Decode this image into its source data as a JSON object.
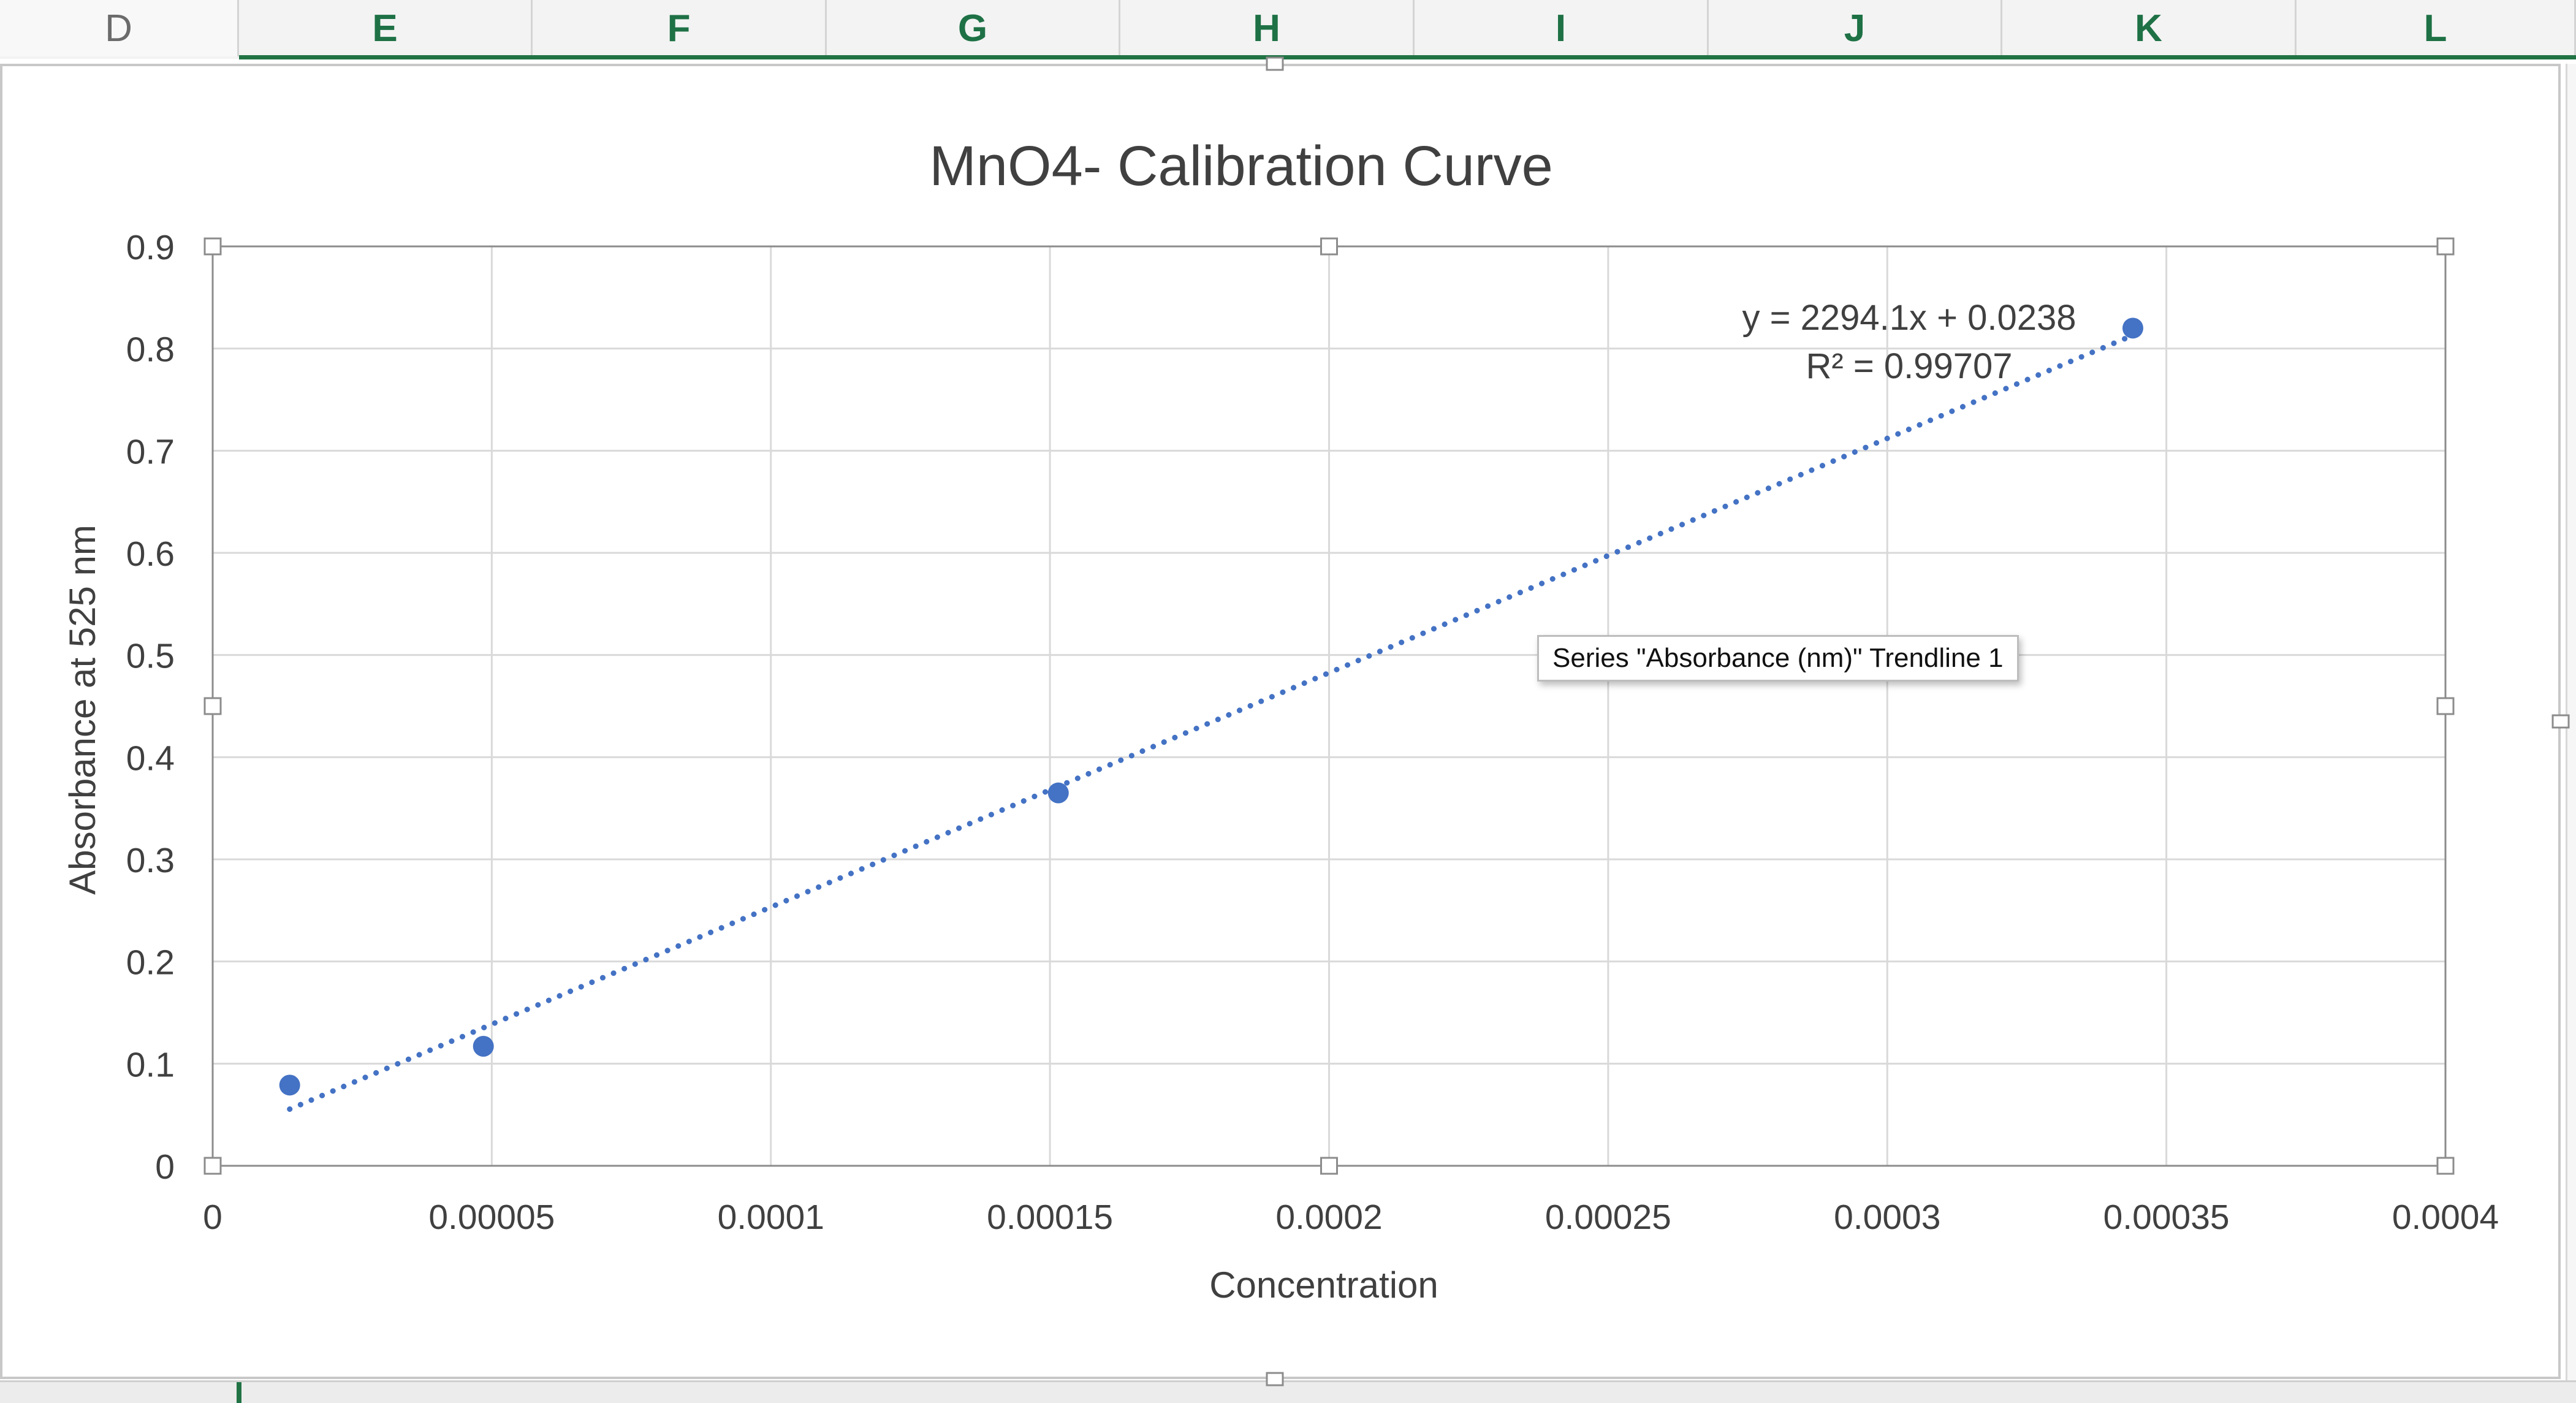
{
  "sheet": {
    "columns": [
      "D",
      "E",
      "F",
      "G",
      "H",
      "I",
      "J",
      "K",
      "L"
    ]
  },
  "tooltip": "Series \"Absorbance (nm)\" Trendline 1",
  "chart_data": {
    "type": "scatter",
    "title": "MnO4- Calibration Curve",
    "xlabel": "Concentration",
    "ylabel": "Absorbance at 525 nm",
    "xlim": [
      0,
      0.0004
    ],
    "ylim": [
      0,
      0.9
    ],
    "x_ticks": [
      "0",
      "0.00005",
      "0.0001",
      "0.00015",
      "0.0002",
      "0.00025",
      "0.0003",
      "0.00035",
      "0.0004"
    ],
    "y_ticks": [
      "0",
      "0.1",
      "0.2",
      "0.3",
      "0.4",
      "0.5",
      "0.6",
      "0.7",
      "0.8",
      "0.9"
    ],
    "grid": true,
    "series": [
      {
        "name": "Absorbance (nm)",
        "x": [
          1.38e-05,
          4.85e-05,
          0.0001515,
          0.000344
        ],
        "y": [
          0.079,
          0.117,
          0.365,
          0.82
        ],
        "color": "#4472c4"
      }
    ],
    "trendline": {
      "type": "linear",
      "slope": 2294.1,
      "intercept": 0.0238,
      "x_range": [
        1.38e-05,
        0.000344
      ],
      "equation": "y = 2294.1x + 0.0238",
      "r_squared": "R² = 0.99707",
      "color": "#4472c4"
    }
  }
}
